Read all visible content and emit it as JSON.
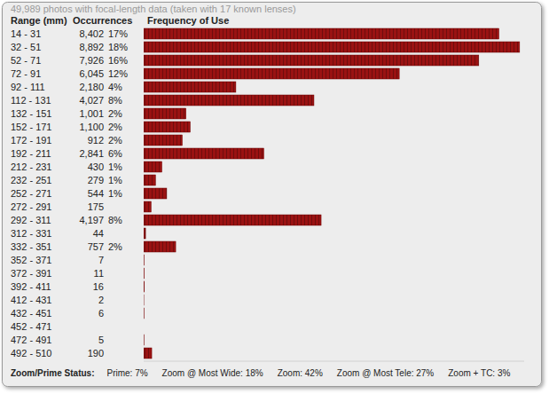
{
  "chart_data": {
    "type": "bar",
    "orientation": "horizontal",
    "title": "49,989 photos with focal-length data (taken with 17 known lenses)",
    "column_headers": [
      "Range (mm)",
      "Occurrences",
      "Frequency of Use"
    ],
    "categories": [
      "14 - 31",
      "32 - 51",
      "52 - 71",
      "72 - 91",
      "92 - 111",
      "112 - 131",
      "132 - 151",
      "152 - 171",
      "172 - 191",
      "192 - 211",
      "212 - 231",
      "232 - 251",
      "252 - 271",
      "272 - 291",
      "292 - 311",
      "312 - 331",
      "332 - 351",
      "352 - 371",
      "372 - 391",
      "392 - 411",
      "412 - 431",
      "432 - 451",
      "452 - 471",
      "472 - 491",
      "492 - 510"
    ],
    "values": [
      8402,
      8892,
      7926,
      6045,
      2180,
      4027,
      1001,
      1100,
      912,
      2841,
      430,
      279,
      544,
      175,
      4197,
      44,
      757,
      7,
      11,
      16,
      2,
      6,
      null,
      5,
      190
    ],
    "value_labels": [
      "8,402",
      "8,892",
      "7,926",
      "6,045",
      "2,180",
      "4,027",
      "1,001",
      "1,100",
      "912",
      "2,841",
      "430",
      "279",
      "544",
      "175",
      "4,197",
      "44",
      "757",
      "7",
      "11",
      "16",
      "2",
      "6",
      null,
      "5",
      "190"
    ],
    "percentages": [
      17,
      18,
      16,
      12,
      4,
      8,
      2,
      2,
      2,
      6,
      1,
      1,
      1,
      null,
      8,
      null,
      2,
      null,
      null,
      null,
      null,
      null,
      null,
      null,
      null
    ],
    "percentage_labels": [
      "17%",
      "18%",
      "16%",
      "12%",
      "4%",
      "8%",
      "2%",
      "2%",
      "2%",
      "6%",
      "1%",
      "1%",
      "1%",
      null,
      "8%",
      null,
      "2%",
      null,
      null,
      null,
      null,
      null,
      null,
      null,
      null
    ],
    "color": "#9a1212",
    "xlim": [
      0,
      9000
    ],
    "tick_labels": false,
    "footer": {
      "label": "Zoom/Prime Status:",
      "items": [
        "Prime: 7%",
        "Zoom @ Most Wide: 18%",
        "Zoom: 42%",
        "Zoom @ Most Tele: 27%",
        "Zoom + TC: 3%"
      ]
    }
  }
}
